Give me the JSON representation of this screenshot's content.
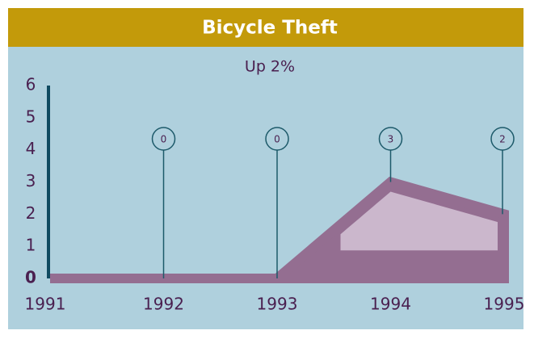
{
  "chart_data": {
    "type": "area",
    "title": "Bicycle Theft",
    "subtitle": "Up 2%",
    "categories": [
      "1991",
      "1992",
      "1993",
      "1994",
      "1995"
    ],
    "values": [
      0,
      0,
      0,
      3,
      2
    ],
    "color": "#946e91",
    "ylim": [
      0,
      6
    ],
    "yticks": [
      0,
      1,
      2,
      3,
      4,
      5,
      6
    ]
  }
}
